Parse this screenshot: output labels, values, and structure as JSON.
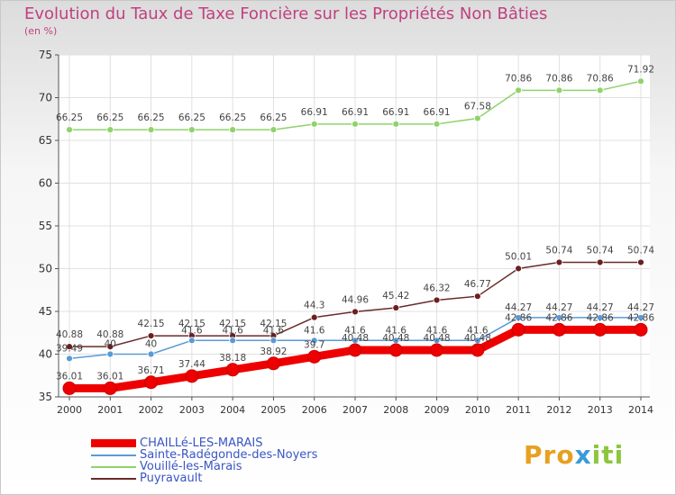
{
  "title": "Evolution du Taux de Taxe Foncière sur les Propriétés Non Bâties",
  "unit_label": "(en %)",
  "logo": {
    "text": "Proxiti"
  },
  "colors": {
    "background": "#ffffff",
    "grid": "#e0e0e0",
    "axis": "#555555",
    "title": "#c04080",
    "legend_text": "#3a56c4"
  },
  "chart_data": {
    "type": "line",
    "title": "Evolution du Taux de Taxe Foncière sur les Propriétés Non Bâties",
    "xlabel": "",
    "ylabel": "(en %)",
    "x": [
      "2000",
      "2001",
      "2002",
      "2003",
      "2004",
      "2005",
      "2006",
      "2007",
      "2008",
      "2009",
      "2010",
      "2011",
      "2012",
      "2013",
      "2014"
    ],
    "ylim": [
      35,
      75
    ],
    "yticks": [
      35,
      40,
      45,
      50,
      55,
      60,
      65,
      70,
      75
    ],
    "grid": true,
    "legend_position": "bottom-left",
    "series": [
      {
        "name": "CHAILLé-LES-MARAIS",
        "color": "#ee0000",
        "values": [
          36.01,
          36.01,
          36.71,
          37.44,
          38.18,
          38.92,
          39.7,
          40.48,
          40.48,
          40.48,
          40.48,
          42.86,
          42.86,
          42.86,
          42.86
        ],
        "labels": [
          "36.01",
          "36.01",
          "36.71",
          "37.44",
          "38.18",
          "38.92",
          "39.7",
          "40.48",
          "40.48",
          "40.48",
          "40.48",
          "42.86",
          "42.86",
          "42.86",
          "42.86"
        ]
      },
      {
        "name": "Sainte-Radégonde-des-Noyers",
        "color": "#5a9ad5",
        "values": [
          39.49,
          40,
          40,
          41.6,
          41.6,
          41.6,
          41.6,
          41.6,
          41.6,
          41.6,
          41.6,
          44.27,
          44.27,
          44.27,
          44.27
        ],
        "labels": [
          "39.49",
          "40",
          "40",
          "41.6",
          "41.6",
          "41.6",
          "41.6",
          "41.6",
          "41.6",
          "41.6",
          "41.6",
          "44.27",
          "44.27",
          "44.27",
          "44.27"
        ]
      },
      {
        "name": "Vouillé-les-Marais",
        "color": "#8ed36b",
        "values": [
          66.25,
          66.25,
          66.25,
          66.25,
          66.25,
          66.25,
          66.91,
          66.91,
          66.91,
          66.91,
          67.58,
          70.86,
          70.86,
          70.86,
          71.92
        ],
        "labels": [
          "66.25",
          "66.25",
          "66.25",
          "66.25",
          "66.25",
          "66.25",
          "66.91",
          "66.91",
          "66.91",
          "66.91",
          "67.58",
          "70.86",
          "70.86",
          "70.86",
          "71.92"
        ]
      },
      {
        "name": "Puyravault",
        "color": "#6b2a2a",
        "values": [
          40.88,
          40.88,
          42.15,
          42.15,
          42.15,
          42.15,
          44.3,
          44.96,
          45.42,
          46.32,
          46.77,
          50.01,
          50.74,
          50.74,
          50.74
        ],
        "labels": [
          "40.88",
          "40.88",
          "42.15",
          "42.15",
          "42.15",
          "42.15",
          "44.3",
          "44.96",
          "45.42",
          "46.32",
          "46.77",
          "50.01",
          "50.74",
          "50.74",
          "50.74"
        ]
      }
    ]
  }
}
